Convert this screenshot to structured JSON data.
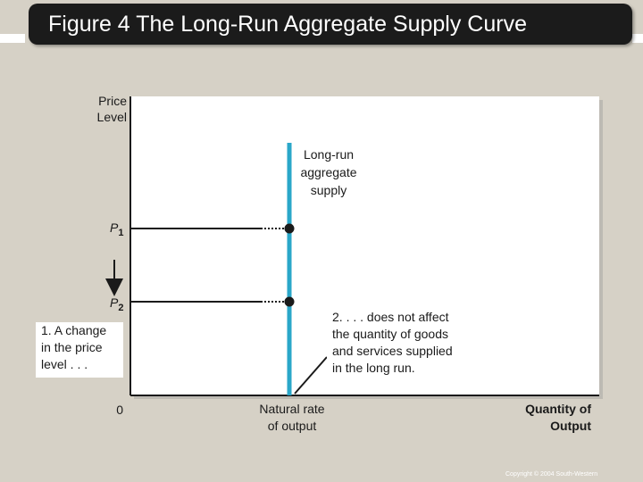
{
  "title": "Figure 4 The Long-Run Aggregate Supply Curve",
  "y_axis_label": [
    "Price",
    "Level"
  ],
  "x_axis_label": [
    "Quantity of",
    "Output"
  ],
  "curve_label": [
    "Long-run",
    "aggregate",
    "supply"
  ],
  "price_levels": [
    {
      "symbol": "P",
      "subscript": "1"
    },
    {
      "symbol": "P",
      "subscript": "2"
    }
  ],
  "origin_label": "0",
  "natural_rate_label": [
    "Natural rate",
    "of output"
  ],
  "annotation_1": [
    "1. A change",
    "in the price",
    "level . . ."
  ],
  "annotation_2": [
    "2. . . . does not affect",
    "the quantity of goods",
    "and services supplied",
    "in the long run."
  ],
  "copyright": "Copyright © 2004 South-Western",
  "colors": {
    "curve": "#2aa7c9",
    "background": "#d6d1c6",
    "title_bg": "#1b1b1b"
  }
}
